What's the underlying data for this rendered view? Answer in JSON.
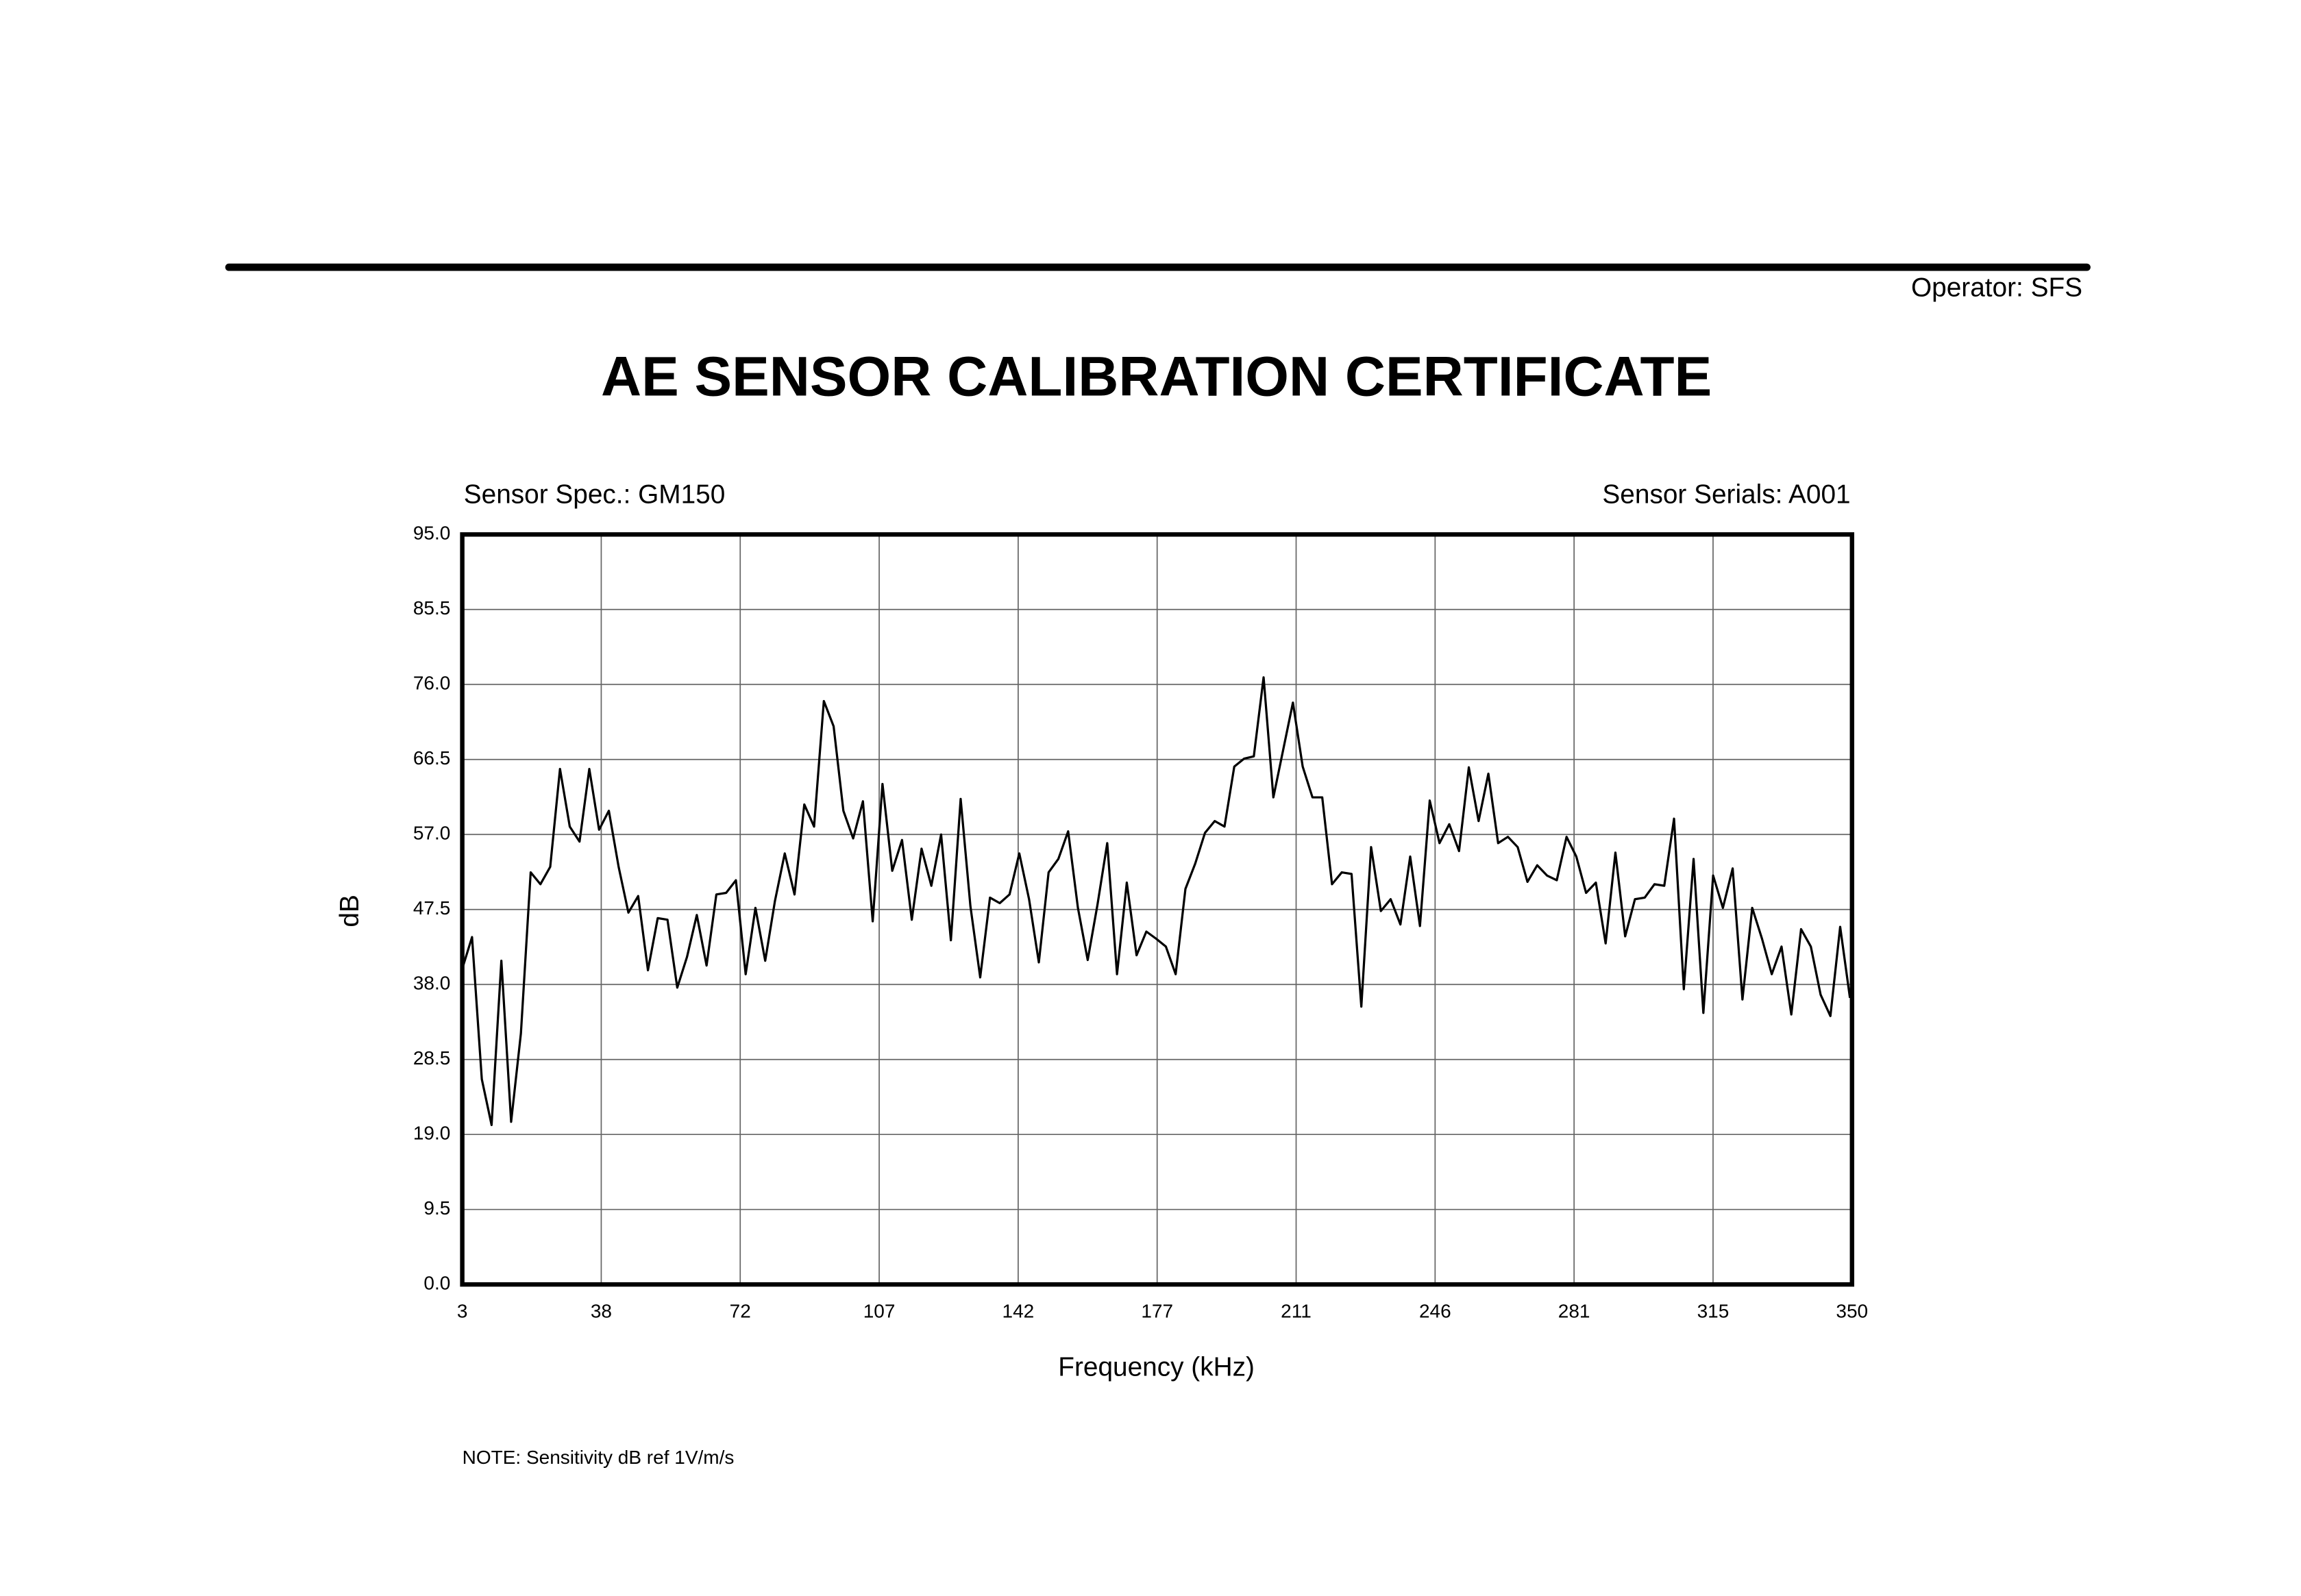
{
  "header": {
    "operator": "Operator: SFS"
  },
  "note": "NOTE:  Sensitivity dB ref 1V/m/s",
  "chart_data": {
    "type": "line",
    "title": "AE SENSOR CALIBRATION CERTIFICATE",
    "annotations": [
      "Sensor Spec.: GM150",
      "Sensor Serials: A001"
    ],
    "xlabel": "Frequency (kHz)",
    "ylabel": "dB",
    "xlim": [
      3,
      350
    ],
    "ylim": [
      0,
      95
    ],
    "xticks": [
      3,
      {
        "value": 37.7,
        "label": "38"
      },
      {
        "value": 72.4,
        "label": "72"
      },
      {
        "value": 107.1,
        "label": "107"
      },
      {
        "value": 141.8,
        "label": "142"
      },
      {
        "value": 176.5,
        "label": "177"
      },
      {
        "value": 211.2,
        "label": "211"
      },
      {
        "value": 245.9,
        "label": "246"
      },
      {
        "value": 280.6,
        "label": "281"
      },
      {
        "value": 315.3,
        "label": "315"
      },
      350
    ],
    "yticks": [
      {
        "value": 0,
        "label": "0.0"
      },
      9.5,
      {
        "value": 19,
        "label": "19.0"
      },
      28.5,
      {
        "value": 38,
        "label": "38.0"
      },
      47.5,
      {
        "value": 57,
        "label": "57.0"
      },
      66.5,
      {
        "value": 76,
        "label": "76.0"
      },
      85.5,
      {
        "value": 95,
        "label": "95.0"
      }
    ],
    "grid": true,
    "series": [
      {
        "color": "#000000",
        "x": [
          3,
          5.44,
          7.88,
          10.32,
          12.76,
          15.2,
          17.64,
          20.08,
          22.52,
          24.96,
          27.4,
          29.84,
          32.28,
          34.72,
          37.16,
          39.6,
          42.04,
          44.48,
          46.92,
          49.36,
          51.8,
          54.24,
          56.68,
          59.12,
          61.56,
          64,
          66.44,
          68.88,
          71.32,
          73.76,
          76.2,
          78.64,
          81.08,
          83.52,
          85.96,
          88.4,
          90.84,
          93.28,
          95.72,
          98.16,
          100.6,
          103.04,
          105.48,
          107.92,
          110.36,
          112.8,
          115.24,
          117.68,
          120.12,
          122.56,
          125,
          127.44,
          129.88,
          132.32,
          134.76,
          137.2,
          139.64,
          142.08,
          144.52,
          146.96,
          149.4,
          151.84,
          154.28,
          156.72,
          159.16,
          161.6,
          164.04,
          166.48,
          168.92,
          171.36,
          173.8,
          176.24,
          178.68,
          181.12,
          183.56,
          186,
          188.44,
          190.88,
          193.32,
          195.76,
          198.2,
          200.64,
          203.08,
          205.52,
          207.96,
          210.4,
          212.84,
          215.28,
          217.72,
          220.16,
          222.6,
          225.04,
          227.48,
          229.92,
          232.36,
          234.8,
          237.24,
          239.68,
          242.12,
          244.56,
          247,
          249.44,
          251.88,
          254.32,
          256.76,
          259.2,
          261.64,
          264.08,
          266.52,
          268.96,
          271.4,
          273.84,
          276.28,
          278.72,
          281.16,
          283.6,
          286.04,
          288.48,
          290.92,
          293.36,
          295.8,
          298.24,
          300.68,
          303.12,
          305.56,
          308,
          310.44,
          312.88,
          315.32,
          317.76,
          320.2,
          322.64,
          325.08,
          327.52,
          329.96,
          332.4,
          334.84,
          337.28,
          339.72,
          342.16,
          344.6,
          347.04,
          349.48
        ],
        "values": [
          40,
          44,
          26,
          20.2,
          41,
          20.6,
          31.8,
          52.2,
          50.7,
          52.9,
          65.3,
          58,
          56.1,
          65.3,
          57.6,
          60,
          52.9,
          47.1,
          49.2,
          39.8,
          46.4,
          46.2,
          37.6,
          41.5,
          46.8,
          40.4,
          49.4,
          49.6,
          51.2,
          39.3,
          47.7,
          41,
          48.6,
          54.6,
          49.4,
          60.8,
          58,
          73.9,
          70.7,
          60,
          56.5,
          61.2,
          46,
          63.4,
          52.4,
          56.3,
          46.2,
          55.2,
          50.5,
          57,
          43.6,
          61.5,
          47.9,
          38.9,
          49,
          48.3,
          49.4,
          54.6,
          48.8,
          40.8,
          52.2,
          53.9,
          57.4,
          47.7,
          41.1,
          48.1,
          55.9,
          39.3,
          50.9,
          41.7,
          44.7,
          43.8,
          42.8,
          39.3,
          50.1,
          53.3,
          57.2,
          58.7,
          58,
          65.6,
          66.6,
          66.9,
          76.9,
          61.7,
          67.7,
          73.7,
          65.6,
          61.7,
          61.7,
          50.7,
          52.2,
          52,
          35.2,
          55.4,
          47.3,
          48.8,
          45.6,
          54.2,
          45.4,
          61.3,
          55.9,
          58.3,
          54.9,
          65.5,
          58.7,
          64.7,
          55.9,
          56.7,
          55.4,
          51,
          53.1,
          51.8,
          51.2,
          56.7,
          54.2,
          49.6,
          50.9,
          43.2,
          54.7,
          44.1,
          48.8,
          49,
          50.7,
          50.5,
          59,
          37.4,
          53.9,
          34.4,
          51.8,
          47.7,
          52.7,
          36.1,
          47.7,
          43.8,
          39.3,
          42.8,
          34.2,
          45,
          42.8,
          36.7,
          34,
          45.3,
          36.3
        ]
      }
    ]
  }
}
